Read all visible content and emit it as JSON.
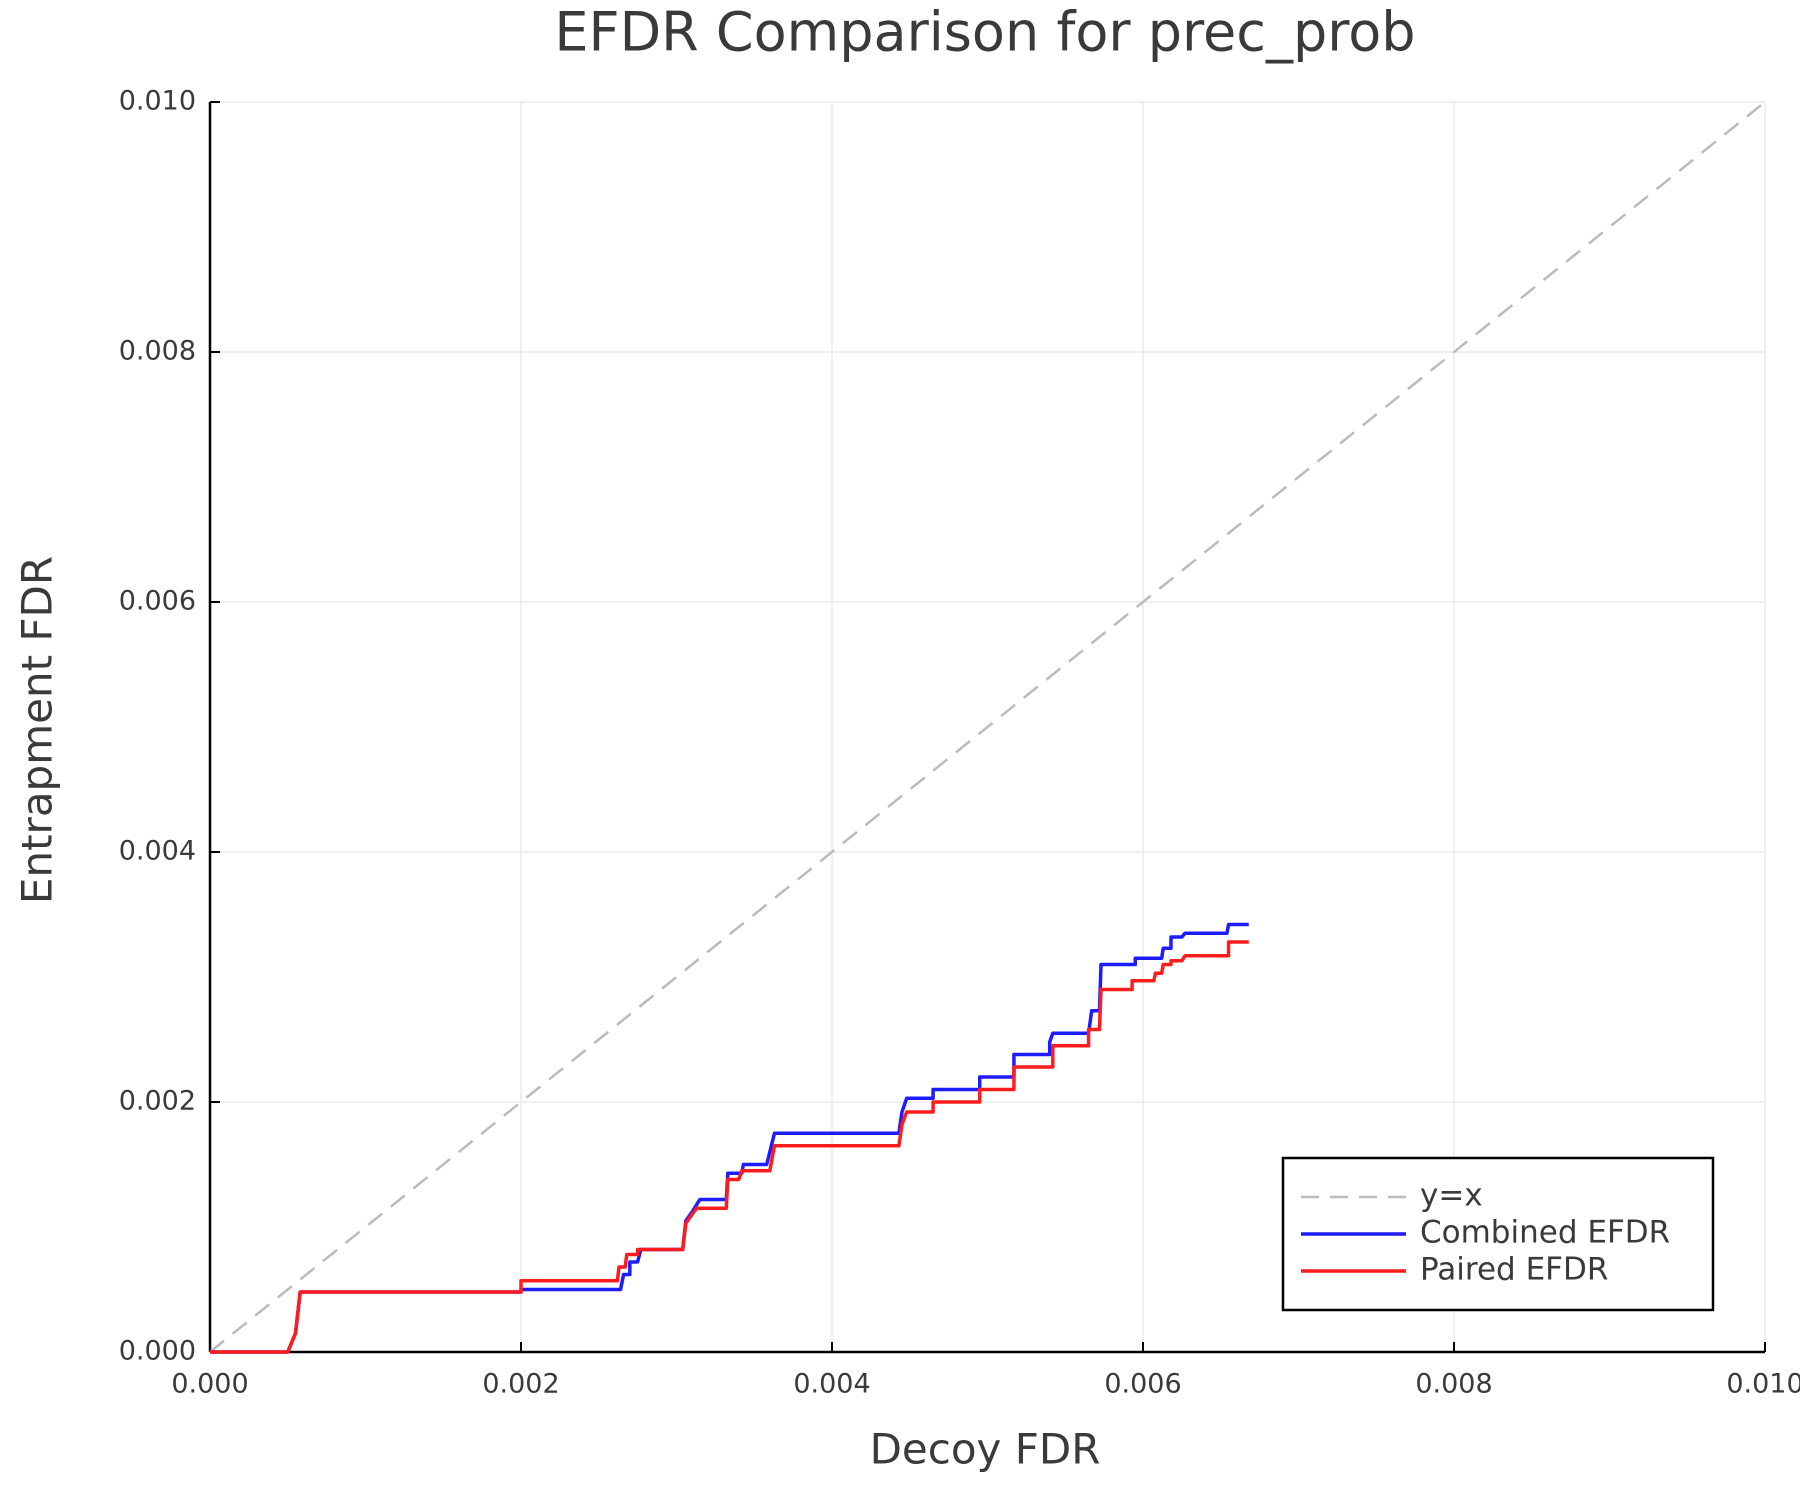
{
  "chart_data": {
    "type": "line",
    "title": "EFDR Comparison for prec_prob",
    "x_label": "Decoy FDR",
    "y_label": "Entrapment FDR",
    "xlim": [
      0,
      0.01
    ],
    "ylim": [
      0,
      0.01
    ],
    "xticks": [
      {
        "value": 0,
        "label": "0.000"
      },
      0.002,
      0.004,
      0.006,
      0.008,
      {
        "value": 0.01,
        "label": "0.010"
      }
    ],
    "yticks": [
      {
        "value": 0,
        "label": "0.000"
      },
      0.002,
      0.004,
      0.006,
      0.008,
      {
        "value": 0.01,
        "label": "0.010"
      }
    ],
    "grid": true,
    "legend": "bottom-right",
    "series": [
      {
        "name": "y=x",
        "color": "#bbbbbb",
        "dash": true,
        "x": [
          0,
          0.01
        ],
        "values": [
          0,
          0.01
        ]
      },
      {
        "name": "Combined EFDR",
        "color": "#1c1cff",
        "dash": false,
        "x": [
          0,
          0.0005,
          0.00055,
          0.00058,
          0.002,
          0.002,
          0.00264,
          0.00266,
          0.0027,
          0.0027,
          0.00275,
          0.00277,
          0.00304,
          0.00306,
          0.0031,
          0.00315,
          0.00332,
          0.00333,
          0.00342,
          0.00343,
          0.00358,
          0.00363,
          0.00443,
          0.00445,
          0.00448,
          0.00465,
          0.00465,
          0.00495,
          0.00495,
          0.00517,
          0.00517,
          0.0054,
          0.0054,
          0.00542,
          0.00565,
          0.00567,
          0.00572,
          0.00573,
          0.00595,
          0.00595,
          0.00612,
          0.00613,
          0.00618,
          0.00618,
          0.00625,
          0.00627,
          0.00654,
          0.00655,
          0.00668
        ],
        "values": [
          0,
          0,
          0.00015,
          0.00048,
          0.00048,
          0.0005,
          0.0005,
          0.00062,
          0.00062,
          0.00072,
          0.00072,
          0.00082,
          0.00082,
          0.00105,
          0.00112,
          0.00122,
          0.00122,
          0.00143,
          0.00143,
          0.0015,
          0.0015,
          0.00175,
          0.00175,
          0.00192,
          0.00203,
          0.00203,
          0.0021,
          0.0021,
          0.0022,
          0.0022,
          0.00238,
          0.00238,
          0.00248,
          0.00255,
          0.00255,
          0.00273,
          0.00273,
          0.0031,
          0.0031,
          0.00315,
          0.00315,
          0.00323,
          0.00323,
          0.00332,
          0.00332,
          0.00335,
          0.00335,
          0.00342,
          0.00342
        ]
      },
      {
        "name": "Paired EFDR",
        "color": "#ff1c1c",
        "dash": false,
        "x": [
          0,
          0.0005,
          0.00055,
          0.00058,
          0.002,
          0.002,
          0.00262,
          0.00263,
          0.00267,
          0.00268,
          0.00275,
          0.00275,
          0.00304,
          0.00306,
          0.0031,
          0.00313,
          0.00332,
          0.00333,
          0.0034,
          0.00342,
          0.0036,
          0.00363,
          0.00443,
          0.00445,
          0.00448,
          0.00465,
          0.00465,
          0.00495,
          0.00495,
          0.00517,
          0.00517,
          0.00542,
          0.00542,
          0.00565,
          0.00565,
          0.00572,
          0.00573,
          0.00593,
          0.00593,
          0.00607,
          0.00608,
          0.00612,
          0.00613,
          0.00618,
          0.00618,
          0.00625,
          0.00627,
          0.00655,
          0.00655,
          0.00668
        ],
        "values": [
          0,
          0,
          0.00015,
          0.00048,
          0.00048,
          0.00057,
          0.00057,
          0.00068,
          0.00068,
          0.00078,
          0.00078,
          0.00082,
          0.00082,
          0.00103,
          0.0011,
          0.00115,
          0.00115,
          0.00138,
          0.00138,
          0.00145,
          0.00145,
          0.00165,
          0.00165,
          0.00182,
          0.00192,
          0.00192,
          0.002,
          0.002,
          0.0021,
          0.0021,
          0.00228,
          0.00228,
          0.00245,
          0.00245,
          0.00258,
          0.00258,
          0.0029,
          0.0029,
          0.00297,
          0.00297,
          0.00303,
          0.00303,
          0.0031,
          0.0031,
          0.00313,
          0.00313,
          0.00317,
          0.00317,
          0.00328,
          0.00328
        ]
      }
    ]
  }
}
